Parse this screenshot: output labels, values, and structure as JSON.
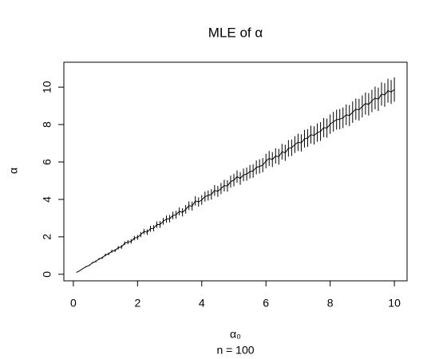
{
  "chart_data": {
    "type": "line",
    "title": "MLE of α",
    "xlabel": "α₀",
    "subtitle": "n = 100",
    "ylabel": "α",
    "color": "#000000",
    "x": [
      0.1,
      0.2,
      0.3,
      0.4,
      0.5,
      0.6,
      0.7,
      0.8,
      0.9,
      1,
      1.1,
      1.2,
      1.3,
      1.4,
      1.5,
      1.6,
      1.7,
      1.8,
      1.9,
      2,
      2.1,
      2.2,
      2.3,
      2.4,
      2.5,
      2.6,
      2.7,
      2.8,
      2.9,
      3,
      3.1,
      3.2,
      3.3,
      3.4,
      3.5,
      3.6,
      3.7,
      3.8,
      3.9,
      4,
      4.1,
      4.2,
      4.3,
      4.4,
      4.5,
      4.6,
      4.7,
      4.8,
      4.9,
      5,
      5.1,
      5.2,
      5.3,
      5.4,
      5.5,
      5.6,
      5.7,
      5.8,
      5.9,
      6,
      6.1,
      6.2,
      6.3,
      6.4,
      6.5,
      6.6,
      6.7,
      6.8,
      6.9,
      7,
      7.1,
      7.2,
      7.3,
      7.4,
      7.5,
      7.6,
      7.7,
      7.8,
      7.9,
      8,
      8.1,
      8.2,
      8.3,
      8.4,
      8.5,
      8.6,
      8.7,
      8.8,
      8.9,
      9,
      9.1,
      9.2,
      9.3,
      9.4,
      9.5,
      9.6,
      9.7,
      9.8,
      9.9,
      10
    ],
    "values": [
      0.1,
      0.19,
      0.31,
      0.41,
      0.48,
      0.62,
      0.69,
      0.82,
      0.88,
      1.03,
      1.09,
      1.23,
      1.27,
      1.42,
      1.46,
      1.66,
      1.72,
      1.76,
      1.93,
      1.97,
      2.12,
      2.28,
      2.25,
      2.43,
      2.46,
      2.65,
      2.66,
      2.83,
      2.95,
      2.97,
      3.14,
      3.18,
      3.36,
      3.31,
      3.47,
      3.66,
      3.64,
      3.92,
      3.86,
      3.97,
      4.15,
      4.21,
      4.27,
      4.48,
      4.43,
      4.58,
      4.74,
      4.72,
      4.95,
      5.03,
      5.22,
      5.12,
      5.31,
      5.35,
      5.48,
      5.52,
      5.71,
      5.76,
      5.83,
      6.05,
      6.19,
      6.13,
      6.32,
      6.28,
      6.55,
      6.49,
      6.73,
      6.76,
      6.93,
      7.05,
      7.02,
      7.24,
      7.28,
      7.46,
      7.42,
      7.57,
      7.63,
      7.84,
      7.81,
      8.02,
      8.15,
      8.26,
      8.29,
      8.36,
      8.52,
      8.48,
      8.66,
      8.82,
      8.79,
      8.97,
      9.12,
      9.08,
      9.26,
      9.42,
      9.35,
      9.63,
      9.58,
      9.81,
      9.74,
      9.87
    ],
    "errors": [
      0.01,
      0.01,
      0.02,
      0.03,
      0.03,
      0.04,
      0.05,
      0.05,
      0.06,
      0.07,
      0.07,
      0.08,
      0.08,
      0.09,
      0.1,
      0.1,
      0.11,
      0.12,
      0.12,
      0.13,
      0.14,
      0.14,
      0.15,
      0.16,
      0.16,
      0.17,
      0.18,
      0.18,
      0.19,
      0.2,
      0.2,
      0.21,
      0.21,
      0.22,
      0.23,
      0.23,
      0.24,
      0.25,
      0.25,
      0.26,
      0.27,
      0.27,
      0.28,
      0.29,
      0.29,
      0.3,
      0.31,
      0.31,
      0.32,
      0.33,
      0.33,
      0.34,
      0.34,
      0.35,
      0.36,
      0.36,
      0.37,
      0.38,
      0.38,
      0.39,
      0.4,
      0.4,
      0.41,
      0.42,
      0.42,
      0.43,
      0.44,
      0.44,
      0.45,
      0.46,
      0.46,
      0.47,
      0.47,
      0.48,
      0.49,
      0.49,
      0.5,
      0.51,
      0.51,
      0.52,
      0.53,
      0.53,
      0.54,
      0.55,
      0.55,
      0.56,
      0.57,
      0.57,
      0.58,
      0.59,
      0.59,
      0.6,
      0.6,
      0.61,
      0.62,
      0.62,
      0.63,
      0.64,
      0.64,
      0.65
    ],
    "xlim": [
      -0.296,
      10.396
    ],
    "ylim": [
      -0.35,
      11.33
    ],
    "xticks": [
      0,
      2,
      4,
      6,
      8,
      10
    ],
    "yticks": [
      0,
      2,
      4,
      6,
      8,
      10
    ]
  }
}
